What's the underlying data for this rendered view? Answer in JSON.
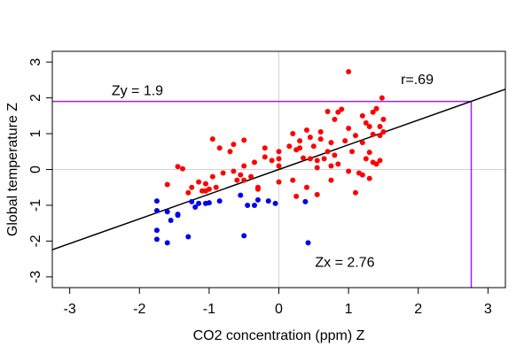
{
  "chart_data": {
    "type": "scatter",
    "title": "",
    "xlabel": "CO2 concentration (ppm) Z",
    "ylabel": "Global temperature Z",
    "xlim": [
      -3.25,
      3.25
    ],
    "ylim": [
      -3.3,
      3.3
    ],
    "x_ticks": [
      "-3",
      "-2",
      "-1",
      "0",
      "1",
      "2",
      "3"
    ],
    "y_ticks": [
      "-3",
      "-2",
      "-1",
      "0",
      "1",
      "2",
      "3"
    ],
    "grid": false,
    "zero_lines": true,
    "colors": {
      "red_points": "#ff0000",
      "blue_points": "#0000ee",
      "regression_line": "#000000",
      "guide_lines": "#a020f0",
      "zero_lines": "#d3d3d3"
    },
    "regression_line": {
      "slope": 0.69,
      "intercept": 0.0
    },
    "guides": {
      "x": 2.76,
      "y": 1.9
    },
    "annotations": {
      "r_label": "r=.69",
      "zy_label": "Zy = 1.9",
      "zx_label": "Zx = 2.76"
    },
    "series": [
      {
        "color": "red",
        "points": [
          [
            1.0,
            2.73
          ],
          [
            1.48,
            2.0
          ],
          [
            1.35,
            1.6
          ],
          [
            1.4,
            1.7
          ],
          [
            0.9,
            1.68
          ],
          [
            0.85,
            1.6
          ],
          [
            0.8,
            1.4
          ],
          [
            0.7,
            1.62
          ],
          [
            1.2,
            1.5
          ],
          [
            1.25,
            1.3
          ],
          [
            1.5,
            1.4
          ],
          [
            1.45,
            1.2
          ],
          [
            1.3,
            1.2
          ],
          [
            1.0,
            1.15
          ],
          [
            0.6,
            1.05
          ],
          [
            0.4,
            1.1
          ],
          [
            0.2,
            1.0
          ],
          [
            1.1,
            0.95
          ],
          [
            1.35,
            0.98
          ],
          [
            1.45,
            0.95
          ],
          [
            1.5,
            1.05
          ],
          [
            0.95,
            0.8
          ],
          [
            1.2,
            0.75
          ],
          [
            0.75,
            0.75
          ],
          [
            0.6,
            0.85
          ],
          [
            0.3,
            0.8
          ],
          [
            0.15,
            0.65
          ],
          [
            0.25,
            0.55
          ],
          [
            0.0,
            0.5
          ],
          [
            -0.2,
            0.6
          ],
          [
            -0.5,
            0.82
          ],
          [
            -0.65,
            0.7
          ],
          [
            -0.7,
            0.5
          ],
          [
            -0.85,
            0.6
          ],
          [
            -0.95,
            0.85
          ],
          [
            0.5,
            0.65
          ],
          [
            0.7,
            0.5
          ],
          [
            0.8,
            0.4
          ],
          [
            1.05,
            0.5
          ],
          [
            1.3,
            0.48
          ],
          [
            1.25,
            0.3
          ],
          [
            1.35,
            0.2
          ],
          [
            1.4,
            0.15
          ],
          [
            1.45,
            0.25
          ],
          [
            0.35,
            0.32
          ],
          [
            0.45,
            0.3
          ],
          [
            0.55,
            0.25
          ],
          [
            0.65,
            0.3
          ],
          [
            0.75,
            0.1
          ],
          [
            0.85,
            0.15
          ],
          [
            0.55,
            0.05
          ],
          [
            0.0,
            0.3
          ],
          [
            -0.1,
            0.25
          ],
          [
            -0.2,
            0.35
          ],
          [
            -0.35,
            0.2
          ],
          [
            -0.5,
            0.1
          ],
          [
            -0.55,
            -0.15
          ],
          [
            -0.65,
            -0.05
          ],
          [
            -0.8,
            -0.1
          ],
          [
            -0.95,
            -0.2
          ],
          [
            -1.05,
            -0.4
          ],
          [
            -1.15,
            -0.35
          ],
          [
            -1.25,
            -0.5
          ],
          [
            -1.3,
            -0.65
          ],
          [
            -1.05,
            -0.6
          ],
          [
            -0.9,
            -0.5
          ],
          [
            -0.6,
            -0.3
          ],
          [
            -0.4,
            -0.2
          ],
          [
            -0.3,
            -0.55
          ],
          [
            -0.3,
            -0.5
          ],
          [
            0.0,
            -0.35
          ],
          [
            0.2,
            -0.3
          ],
          [
            0.4,
            -0.5
          ],
          [
            0.55,
            -0.7
          ],
          [
            0.25,
            -0.75
          ],
          [
            1.1,
            -0.65
          ],
          [
            1.3,
            -0.25
          ],
          [
            1.2,
            -0.15
          ],
          [
            1.15,
            -0.1
          ],
          [
            1.0,
            -0.05
          ],
          [
            -1.6,
            -0.42
          ],
          [
            -1.45,
            0.08
          ],
          [
            -1.38,
            0.02
          ],
          [
            -1.1,
            -0.6
          ],
          [
            -1.0,
            -0.55
          ],
          [
            -0.5,
            -0.3
          ],
          [
            0.0,
            0.1
          ],
          [
            0.45,
            0.9
          ],
          [
            0.3,
            0.6
          ],
          [
            0.75,
            -0.3
          ]
        ]
      },
      {
        "color": "blue",
        "points": [
          [
            -1.75,
            -0.88
          ],
          [
            -1.75,
            -1.15
          ],
          [
            -1.75,
            -1.7
          ],
          [
            -1.75,
            -1.95
          ],
          [
            -1.6,
            -1.18
          ],
          [
            -1.55,
            -1.42
          ],
          [
            -1.6,
            -2.05
          ],
          [
            -1.45,
            -1.28
          ],
          [
            -1.45,
            -1.25
          ],
          [
            -1.25,
            -0.9
          ],
          [
            -1.2,
            -1.05
          ],
          [
            -1.15,
            -0.95
          ],
          [
            -1.3,
            -1.88
          ],
          [
            -1.05,
            -0.95
          ],
          [
            -1.0,
            -0.93
          ],
          [
            -0.85,
            -0.88
          ],
          [
            -0.55,
            -0.72
          ],
          [
            -0.45,
            -1.0
          ],
          [
            -0.35,
            -1.0
          ],
          [
            -0.3,
            -0.85
          ],
          [
            -0.15,
            -0.88
          ],
          [
            -0.05,
            -0.95
          ],
          [
            0.38,
            -0.9
          ],
          [
            -0.5,
            -1.85
          ],
          [
            0.42,
            -2.05
          ]
        ]
      }
    ]
  }
}
